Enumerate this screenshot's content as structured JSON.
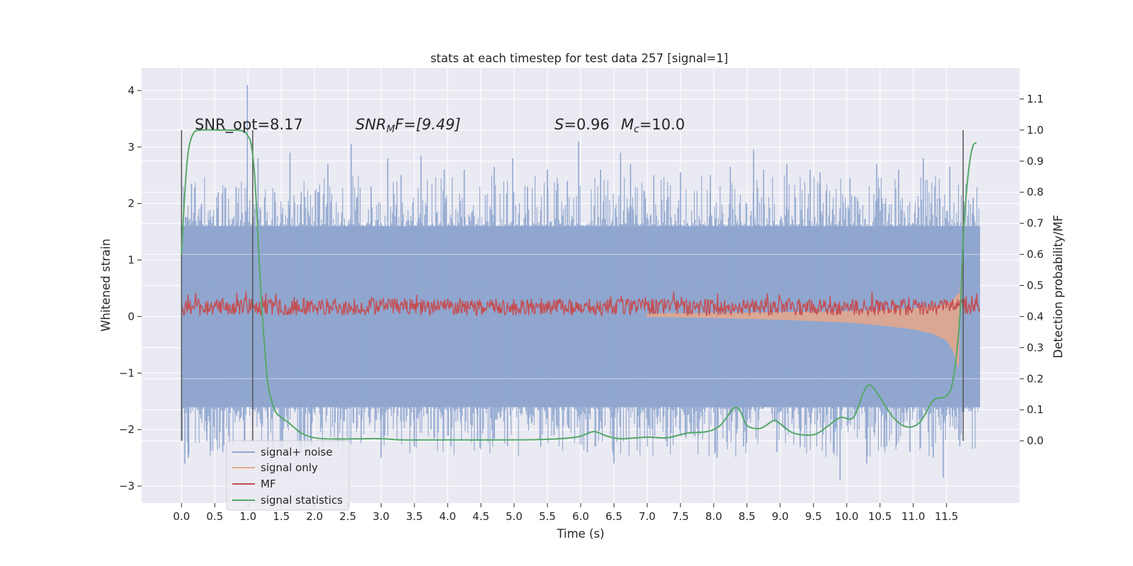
{
  "chart_data": {
    "type": "line",
    "title": "stats at each timestep for test data 257 [signal=1]",
    "xlabel": "Time (s)",
    "ylabel": "Whitened strain",
    "ylabel_right": "Detection probability/MF",
    "xlim": [
      -0.6,
      12.6
    ],
    "ylim": [
      -3.3,
      4.4
    ],
    "ylim_right": [
      -0.2,
      1.2
    ],
    "x_ticks": [
      0.0,
      0.5,
      1.0,
      1.5,
      2.0,
      2.5,
      3.0,
      3.5,
      4.0,
      4.5,
      5.0,
      5.5,
      6.0,
      6.5,
      7.0,
      7.5,
      8.0,
      8.5,
      9.0,
      9.5,
      10.0,
      10.5,
      11.0,
      11.5
    ],
    "x_tick_labels": [
      "0.0",
      "0.5",
      "1.0",
      "1.5",
      "2.0",
      "2.5",
      "3.0",
      "3.5",
      "4.0",
      "4.5",
      "5.0",
      "5.5",
      "6.0",
      "6.5",
      "7.0",
      "7.5",
      "8.0",
      "8.5",
      "9.0",
      "9.5",
      "10.0",
      "10.5",
      "11.0",
      "11.5"
    ],
    "y_ticks": [
      -3,
      -2,
      -1,
      0,
      1,
      2,
      3,
      4
    ],
    "y_tick_labels": [
      "−3",
      "−2",
      "−1",
      "0",
      "1",
      "2",
      "3",
      "4"
    ],
    "y_right_ticks": [
      0.0,
      0.1,
      0.2,
      0.3,
      0.4,
      0.5,
      0.6,
      0.7,
      0.8,
      0.9,
      1.0,
      1.1
    ],
    "y_right_tick_labels": [
      "0.0",
      "0.1",
      "0.2",
      "0.3",
      "0.4",
      "0.5",
      "0.6",
      "0.7",
      "0.8",
      "0.9",
      "1.0",
      "1.1"
    ],
    "grid": true,
    "legend_position": "lower-left",
    "background": "#eaeaf2",
    "annotations": {
      "snr_opt": "SNR_opt=8.17",
      "snr_mf_sym": "SNR",
      "snr_mf_sub": "M",
      "snr_mf_rest": "F=[9.49]",
      "s_sym": "S",
      "s_val": "=0.96",
      "mc_sym": "M",
      "mc_sub": "c",
      "mc_val": "=10.0"
    },
    "vlines": [
      0.0,
      1.07,
      11.75
    ],
    "series": [
      {
        "name": "signal+ noise",
        "color": "#8fa6cf",
        "axis": "left",
        "description": "noise band",
        "t_range": [
          0.0,
          12.0
        ],
        "envelope_low": -1.6,
        "envelope_high": 1.6,
        "spikes": [
          [
            0.02,
            1.6
          ],
          [
            0.05,
            -2.6
          ],
          [
            0.1,
            -2.5
          ],
          [
            0.15,
            2.35
          ],
          [
            0.3,
            2.0
          ],
          [
            0.38,
            -2.2
          ],
          [
            0.55,
            2.2
          ],
          [
            0.62,
            -2.4
          ],
          [
            0.82,
            2.3
          ],
          [
            0.95,
            -2.2
          ],
          [
            0.99,
            4.1
          ],
          [
            1.15,
            2.8
          ],
          [
            1.3,
            -2.3
          ],
          [
            1.4,
            2.2
          ],
          [
            1.5,
            -2.4
          ],
          [
            1.63,
            2.9
          ],
          [
            1.8,
            2.2
          ],
          [
            1.95,
            -2.3
          ],
          [
            2.05,
            2.2
          ],
          [
            2.2,
            2.7
          ],
          [
            2.35,
            -2.3
          ],
          [
            2.55,
            3.05
          ],
          [
            2.7,
            -2.2
          ],
          [
            2.85,
            2.3
          ],
          [
            3.0,
            -2.5
          ],
          [
            3.1,
            2.8
          ],
          [
            3.3,
            2.5
          ],
          [
            3.5,
            -2.3
          ],
          [
            3.6,
            2.85
          ],
          [
            3.75,
            -2.0
          ],
          [
            3.95,
            2.6
          ],
          [
            4.05,
            -2.3
          ],
          [
            4.25,
            2.6
          ],
          [
            4.45,
            -2.2
          ],
          [
            4.7,
            2.65
          ],
          [
            4.9,
            -2.3
          ],
          [
            4.98,
            2.8
          ],
          [
            5.2,
            2.3
          ],
          [
            5.4,
            -2.3
          ],
          [
            5.5,
            2.6
          ],
          [
            5.6,
            -2.1
          ],
          [
            5.8,
            2.4
          ],
          [
            5.97,
            3.1
          ],
          [
            6.1,
            -2.4
          ],
          [
            6.3,
            2.6
          ],
          [
            6.5,
            -2.6
          ],
          [
            6.6,
            2.9
          ],
          [
            6.75,
            2.7
          ],
          [
            6.85,
            -2.2
          ],
          [
            7.1,
            2.5
          ],
          [
            7.3,
            -2.3
          ],
          [
            7.5,
            2.55
          ],
          [
            7.7,
            -2.1
          ],
          [
            7.95,
            2.5
          ],
          [
            8.05,
            -2.5
          ],
          [
            8.25,
            2.65
          ],
          [
            8.45,
            -2.3
          ],
          [
            8.6,
            2.95
          ],
          [
            8.75,
            2.6
          ],
          [
            8.95,
            -2.4
          ],
          [
            9.1,
            2.7
          ],
          [
            9.3,
            -2.3
          ],
          [
            9.45,
            2.6
          ],
          [
            9.6,
            2.55
          ],
          [
            9.8,
            -2.4
          ],
          [
            9.9,
            -2.9
          ],
          [
            10.05,
            2.45
          ],
          [
            10.3,
            -2.6
          ],
          [
            10.45,
            2.7
          ],
          [
            10.6,
            -2.3
          ],
          [
            10.78,
            2.6
          ],
          [
            10.95,
            -2.4
          ],
          [
            11.15,
            2.8
          ],
          [
            11.3,
            -2.5
          ],
          [
            11.45,
            -2.85
          ],
          [
            11.55,
            2.65
          ],
          [
            11.7,
            -2.3
          ],
          [
            11.9,
            2.1
          ]
        ]
      },
      {
        "name": "signal only",
        "color": "#e8a88a",
        "axis": "left",
        "description": "chirp tail",
        "points": [
          [
            7.0,
            0.0
          ],
          [
            8.0,
            -0.02
          ],
          [
            9.0,
            -0.05
          ],
          [
            10.0,
            -0.1
          ],
          [
            10.5,
            -0.15
          ],
          [
            11.0,
            -0.22
          ],
          [
            11.3,
            -0.3
          ],
          [
            11.5,
            -0.42
          ],
          [
            11.6,
            -0.6
          ],
          [
            11.68,
            -0.9
          ],
          [
            11.7,
            0.55
          ],
          [
            11.72,
            0.2
          ]
        ]
      },
      {
        "name": "MF",
        "color": "#c44e52",
        "axis": "left",
        "description": "noise band",
        "t_range": [
          0.0,
          12.0
        ],
        "envelope_low": 0.02,
        "envelope_high": 0.32
      },
      {
        "name": "signal statistics",
        "color": "#55a868",
        "axis": "right",
        "points": [
          [
            0.0,
            0.6
          ],
          [
            0.05,
            0.8
          ],
          [
            0.1,
            0.93
          ],
          [
            0.18,
            0.99
          ],
          [
            0.3,
            1.0
          ],
          [
            0.6,
            1.0
          ],
          [
            0.9,
            0.998
          ],
          [
            1.0,
            0.98
          ],
          [
            1.05,
            0.95
          ],
          [
            1.1,
            0.85
          ],
          [
            1.15,
            0.65
          ],
          [
            1.2,
            0.45
          ],
          [
            1.25,
            0.3
          ],
          [
            1.3,
            0.18
          ],
          [
            1.4,
            0.1
          ],
          [
            1.5,
            0.075
          ],
          [
            1.6,
            0.06
          ],
          [
            1.8,
            0.025
          ],
          [
            2.0,
            0.01
          ],
          [
            2.3,
            0.006
          ],
          [
            3.0,
            0.007
          ],
          [
            3.3,
            0.003
          ],
          [
            4.0,
            0.003
          ],
          [
            5.0,
            0.003
          ],
          [
            5.5,
            0.005
          ],
          [
            5.8,
            0.009
          ],
          [
            6.0,
            0.015
          ],
          [
            6.2,
            0.03
          ],
          [
            6.4,
            0.015
          ],
          [
            6.6,
            0.007
          ],
          [
            7.0,
            0.012
          ],
          [
            7.3,
            0.01
          ],
          [
            7.6,
            0.025
          ],
          [
            7.9,
            0.03
          ],
          [
            8.1,
            0.05
          ],
          [
            8.3,
            0.105
          ],
          [
            8.4,
            0.095
          ],
          [
            8.5,
            0.05
          ],
          [
            8.7,
            0.04
          ],
          [
            8.9,
            0.065
          ],
          [
            9.0,
            0.055
          ],
          [
            9.2,
            0.025
          ],
          [
            9.5,
            0.02
          ],
          [
            9.7,
            0.045
          ],
          [
            9.9,
            0.075
          ],
          [
            10.1,
            0.075
          ],
          [
            10.25,
            0.155
          ],
          [
            10.35,
            0.18
          ],
          [
            10.5,
            0.14
          ],
          [
            10.7,
            0.075
          ],
          [
            10.9,
            0.045
          ],
          [
            11.1,
            0.06
          ],
          [
            11.3,
            0.13
          ],
          [
            11.5,
            0.145
          ],
          [
            11.6,
            0.2
          ],
          [
            11.7,
            0.4
          ],
          [
            11.75,
            0.65
          ],
          [
            11.8,
            0.8
          ],
          [
            11.85,
            0.9
          ],
          [
            11.9,
            0.95
          ],
          [
            11.95,
            0.96
          ]
        ]
      }
    ]
  }
}
